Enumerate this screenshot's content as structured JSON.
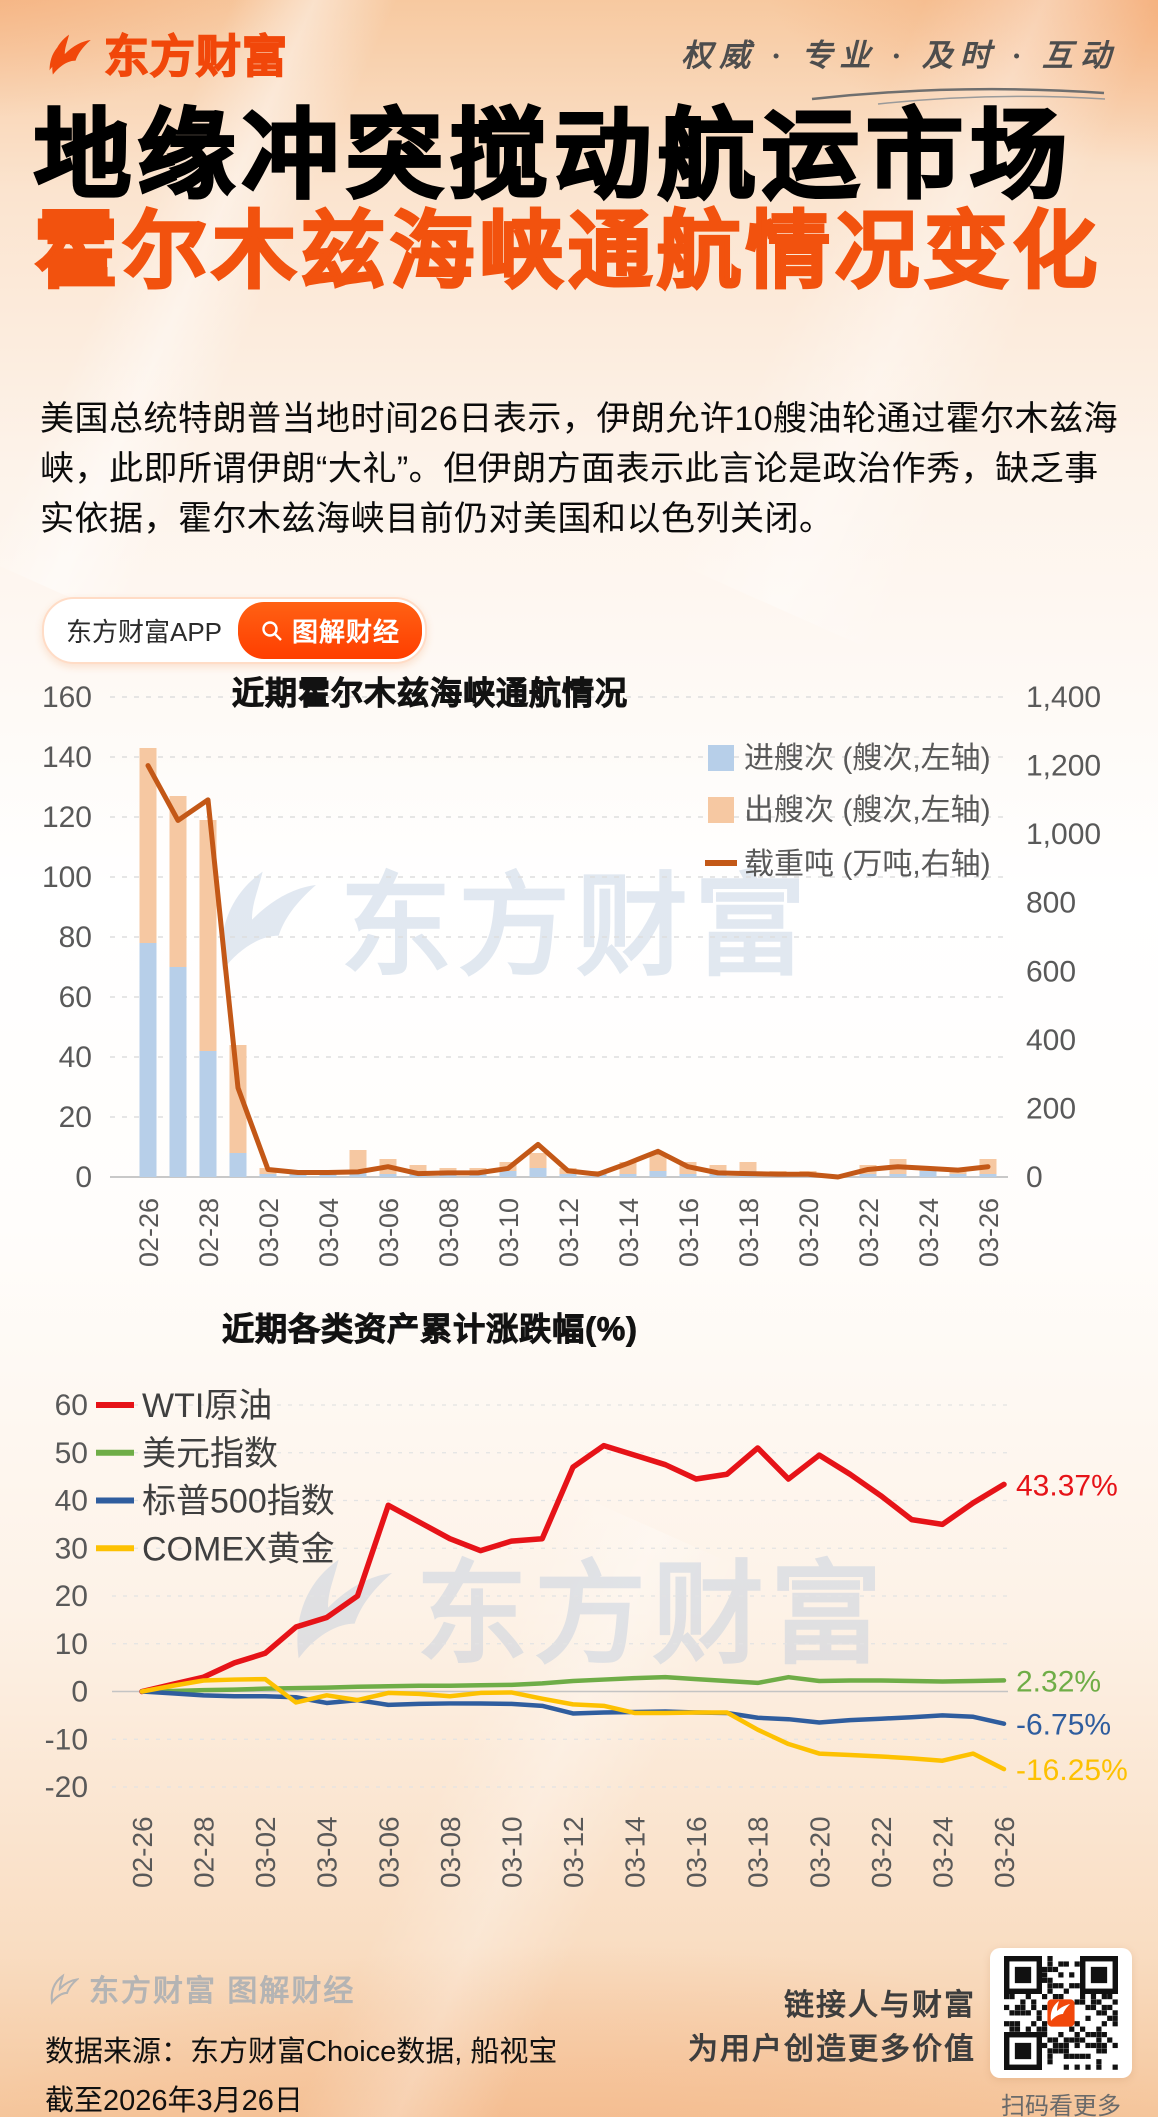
{
  "header": {
    "logo_text": "东方财富",
    "slogan": "权威 · 专业 · 及时 · 互动"
  },
  "title": "地缘冲突搅动航运市场",
  "subtitle": "霍尔木兹海峡通航情况变化",
  "intro": "美国总统特朗普当地时间26日表示，伊朗允许10艘油轮通过霍尔木兹海峡，此即所谓伊朗“大礼”。但伊朗方面表示此言论是政治作秀，缺乏事实依据，霍尔木兹海峡目前仍对美国和以色列关闭。",
  "badges": {
    "app": "东方财富APP",
    "column": "图解财经"
  },
  "watermark_text": "东方财富",
  "colors": {
    "brand_orange": "#f1470a",
    "subtitle_orange": "#f2520e",
    "badge_orange": "#ff4b00",
    "bar_in_blue": "#b7cfe9",
    "bar_out_orange": "#f6c8a2",
    "dwt_line": "#c35817",
    "wti_red": "#e61318",
    "usd_green": "#6fad47",
    "spx_blue": "#2f5d9e",
    "gold_yellow": "#fdc101",
    "axis_gray": "#595959"
  },
  "chart_data": [
    {
      "type": "bar",
      "subtype": "stacked-bar-with-line",
      "title": "近期霍尔木兹海峡通航情况",
      "categories": [
        "02-26",
        "02-27",
        "02-28",
        "03-01",
        "03-02",
        "03-03",
        "03-04",
        "03-05",
        "03-06",
        "03-07",
        "03-08",
        "03-09",
        "03-10",
        "03-11",
        "03-12",
        "03-13",
        "03-14",
        "03-15",
        "03-16",
        "03-17",
        "03-18",
        "03-19",
        "03-20",
        "03-21",
        "03-22",
        "03-23",
        "03-24",
        "03-25",
        "03-26"
      ],
      "left_axis": {
        "min": 0,
        "max": 160,
        "step": 20
      },
      "right_axis": {
        "min": 0,
        "max": 1400,
        "step": 200
      },
      "legend_position": "top-right",
      "grid": "dashed-horizontal",
      "series": [
        {
          "name": "进艘次 (艘次,左轴)",
          "kind": "bar",
          "axis": "left",
          "color": "#b7cfe9",
          "values": [
            78,
            70,
            42,
            8,
            1,
            1,
            1,
            2,
            1,
            1,
            2,
            1,
            2,
            3,
            1,
            1,
            1,
            2,
            1,
            1,
            2,
            1,
            1,
            0,
            1,
            1,
            2,
            1,
            1
          ]
        },
        {
          "name": "出艘次 (艘次,左轴)",
          "kind": "bar",
          "axis": "left",
          "color": "#f6c8a2",
          "values": [
            65,
            57,
            77,
            36,
            2,
            1,
            1,
            7,
            5,
            3,
            1,
            2,
            3,
            5,
            2,
            1,
            4,
            6,
            4,
            3,
            3,
            1,
            1,
            0,
            3,
            5,
            1,
            2,
            5
          ]
        },
        {
          "name": "载重吨 (万吨,右轴)",
          "kind": "line",
          "axis": "right",
          "color": "#c35817",
          "values": [
            1200,
            1040,
            1100,
            260,
            22,
            13,
            13,
            15,
            30,
            10,
            12,
            12,
            25,
            95,
            18,
            8,
            40,
            75,
            30,
            12,
            10,
            8,
            8,
            0,
            22,
            30,
            25,
            20,
            30
          ]
        }
      ]
    },
    {
      "type": "line",
      "title": "近期各类资产累计涨跌幅(%)",
      "categories": [
        "02-26",
        "02-27",
        "02-28",
        "03-01",
        "03-02",
        "03-03",
        "03-04",
        "03-05",
        "03-06",
        "03-07",
        "03-08",
        "03-09",
        "03-10",
        "03-11",
        "03-12",
        "03-13",
        "03-14",
        "03-15",
        "03-16",
        "03-17",
        "03-18",
        "03-19",
        "03-20",
        "03-21",
        "03-22",
        "03-23",
        "03-24",
        "03-25",
        "03-26"
      ],
      "y_axis": {
        "min": -20,
        "max": 60,
        "step": 10
      },
      "legend_position": "top-left",
      "grid": "dashed-horizontal",
      "series": [
        {
          "name": "WTI原油",
          "color": "#e61318",
          "end_label": "43.37%",
          "values": [
            0,
            1.5,
            3,
            6,
            8,
            13.5,
            15.5,
            20,
            39,
            35.5,
            32,
            29.5,
            31.5,
            32,
            47,
            51.5,
            49.5,
            47.5,
            44.5,
            45.5,
            51,
            44.5,
            49.5,
            45.5,
            41,
            36,
            35,
            39.5,
            43.37
          ]
        },
        {
          "name": "美元指数",
          "color": "#6fad47",
          "end_label": "2.32%",
          "values": [
            0,
            0.1,
            0.3,
            0.4,
            0.6,
            0.7,
            0.8,
            1,
            1.1,
            1.2,
            1.2,
            1.3,
            1.4,
            1.7,
            2.2,
            2.5,
            2.8,
            3,
            2.6,
            2.2,
            1.8,
            3,
            2.2,
            2.3,
            2.3,
            2.2,
            2.1,
            2.2,
            2.32
          ]
        },
        {
          "name": "标普500指数",
          "color": "#2f5d9e",
          "end_label": "-6.75%",
          "values": [
            0,
            -0.4,
            -0.8,
            -1,
            -1,
            -1.2,
            -2.4,
            -1.8,
            -2.8,
            -2.6,
            -2.5,
            -2.5,
            -2.6,
            -3,
            -4.6,
            -4.4,
            -4.3,
            -4.2,
            -4.4,
            -4.5,
            -5.5,
            -5.8,
            -6.5,
            -6,
            -5.7,
            -5.4,
            -5,
            -5.3,
            -6.75
          ]
        },
        {
          "name": "COMEX黄金",
          "color": "#fdc101",
          "end_label": "-16.25%",
          "values": [
            0,
            1.2,
            2.3,
            2.5,
            2.6,
            -2.3,
            -0.8,
            -1.8,
            -0.3,
            -0.5,
            -1,
            -0.3,
            -0.2,
            -1.5,
            -2.7,
            -3,
            -4.5,
            -4.5,
            -4.4,
            -4.4,
            -8,
            -11,
            -13,
            -13.3,
            -13.6,
            -14,
            -14.5,
            -13,
            -16.25
          ]
        }
      ]
    }
  ],
  "footer": {
    "brand": "东方财富 图解财经",
    "source": "数据来源：东方财富Choice数据, 船视宝",
    "asof": "截至2026年3月26日",
    "slogan_line1": "链接人与财富",
    "slogan_line2": "为用户创造更多价值",
    "qr_caption": "扫码看更多"
  }
}
